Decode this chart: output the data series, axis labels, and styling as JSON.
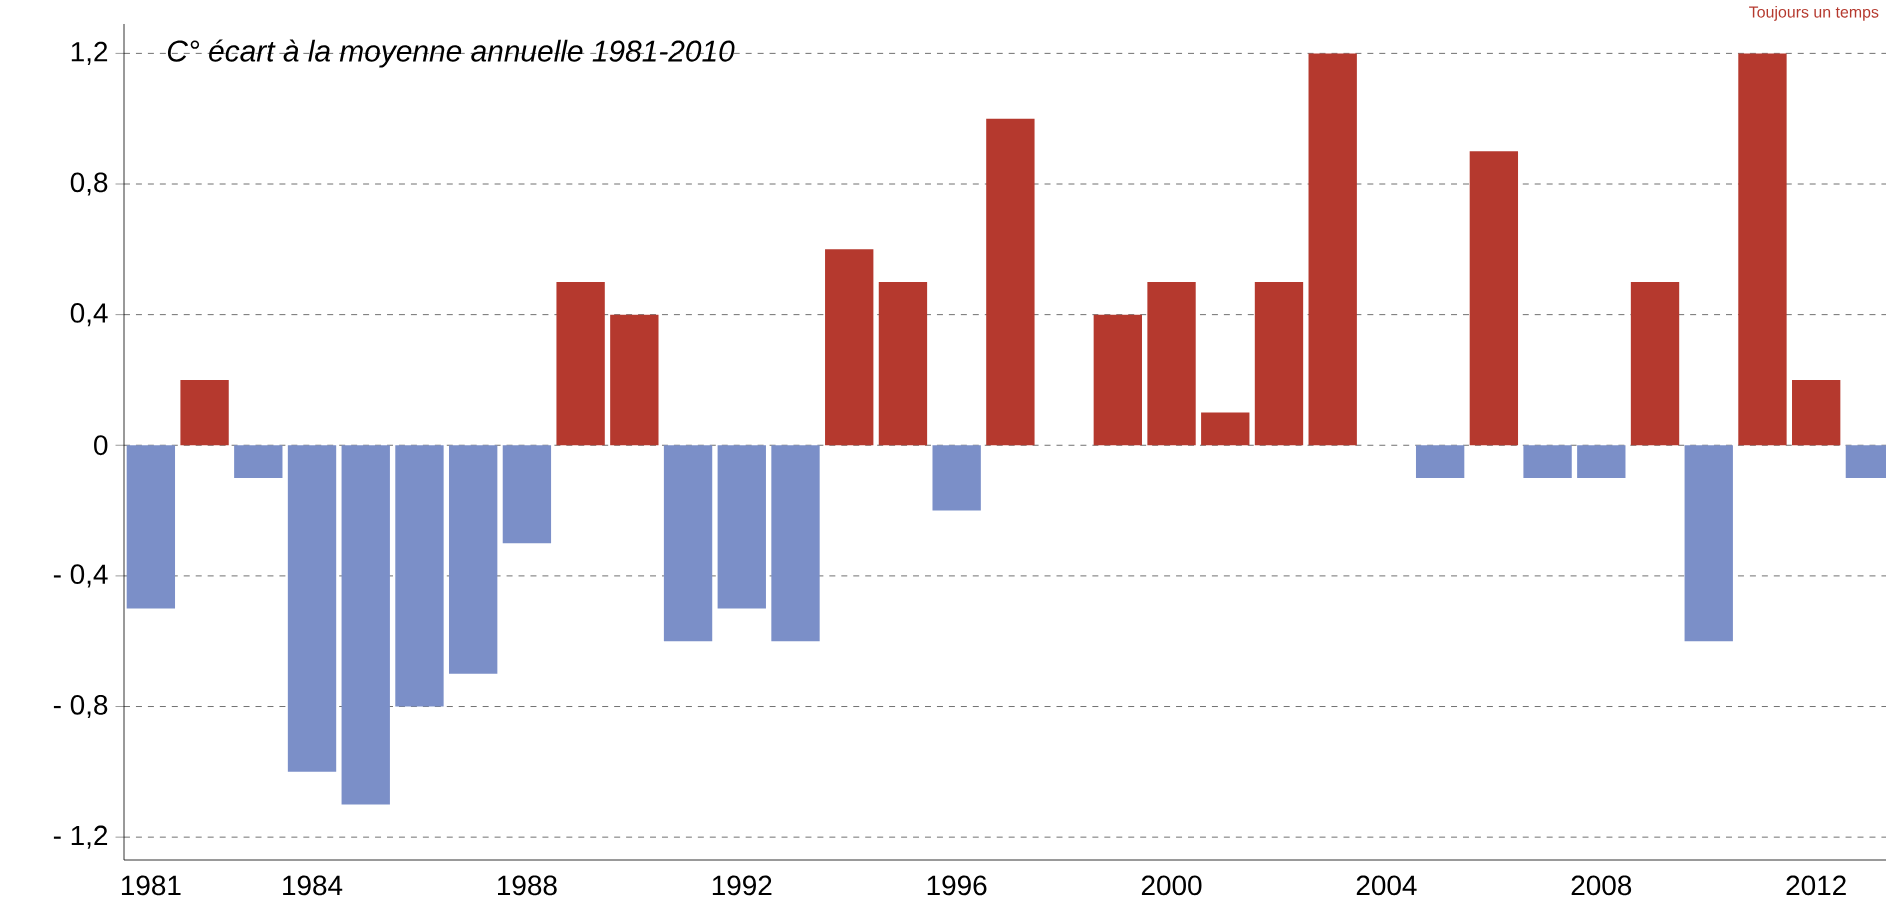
{
  "chart_data": {
    "type": "bar",
    "title": "C° écart à la moyenne annuelle 1981-2010",
    "x": [
      1981,
      1982,
      1983,
      1984,
      1985,
      1986,
      1987,
      1988,
      1989,
      1990,
      1991,
      1992,
      1993,
      1994,
      1995,
      1996,
      1997,
      1998,
      1999,
      2000,
      2001,
      2002,
      2003,
      2004,
      2005,
      2006,
      2007,
      2008,
      2009,
      2010,
      2011,
      2012,
      2013
    ],
    "values": [
      -0.5,
      0.2,
      -0.1,
      -1.0,
      -1.1,
      -0.8,
      -0.7,
      -0.3,
      0.5,
      0.4,
      -0.6,
      -0.5,
      -0.6,
      0.6,
      0.5,
      -0.2,
      1.0,
      0.0,
      0.4,
      0.5,
      0.1,
      0.5,
      1.2,
      0.0,
      -0.1,
      0.9,
      -0.1,
      -0.1,
      0.5,
      -0.6,
      1.2,
      0.2,
      -0.1
    ],
    "colors": [
      "#7b8fc8",
      "#b5392e",
      "#7b8fc8",
      "#7b8fc8",
      "#7b8fc8",
      "#7b8fc8",
      "#7b8fc8",
      "#7b8fc8",
      "#b5392e",
      "#b5392e",
      "#7b8fc8",
      "#7b8fc8",
      "#7b8fc8",
      "#b5392e",
      "#b5392e",
      "#7b8fc8",
      "#b5392e",
      "#b5392e",
      "#b5392e",
      "#b5392e",
      "#b5392e",
      "#b5392e",
      "#b5392e",
      "#b5392e",
      "#7b8fc8",
      "#b5392e",
      "#7b8fc8",
      "#7b8fc8",
      "#b5392e",
      "#7b8fc8",
      "#b5392e",
      "#b5392e",
      "#7b8fc8"
    ],
    "xlim": [
      1980.5,
      2013.3
    ],
    "xticks": [
      1981,
      1984,
      1988,
      1992,
      1996,
      2000,
      2004,
      2008,
      2012
    ],
    "ylim": [
      -1.27,
      1.29
    ],
    "yticks": [
      {
        "value": -1.2,
        "label": "- 1,2"
      },
      {
        "value": -0.8,
        "label": "- 0,8"
      },
      {
        "value": -0.4,
        "label": "- 0,4"
      },
      {
        "value": 0,
        "label": "0"
      },
      {
        "value": 0.4,
        "label": "0,4"
      },
      {
        "value": 0.8,
        "label": "0,8"
      },
      {
        "value": 1.2,
        "label": "1,2"
      }
    ],
    "grid": "y",
    "annotations": [
      "Toujours un temps"
    ]
  }
}
